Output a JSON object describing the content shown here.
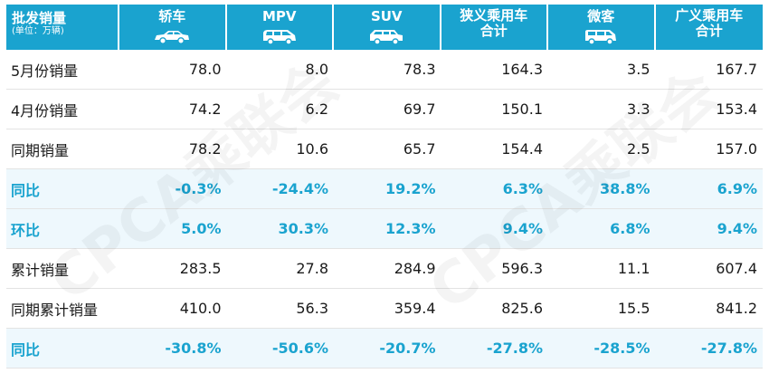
{
  "header": {
    "title": "批发销量",
    "unit": "(单位：万辆)",
    "columns": [
      {
        "label": "轿车",
        "icon": "sedan-icon"
      },
      {
        "label": "MPV",
        "icon": "mpv-icon"
      },
      {
        "label": "SUV",
        "icon": "suv-icon"
      },
      {
        "label": "狭义乘用车",
        "label2": "合计"
      },
      {
        "label": "微客",
        "icon": "minivan-icon"
      },
      {
        "label": "广义乘用车",
        "label2": "合计"
      }
    ]
  },
  "rows": [
    {
      "label": "5月份销量",
      "values": [
        "78.0",
        "8.0",
        "78.3",
        "164.3",
        "3.5",
        "167.7"
      ],
      "highlight": false
    },
    {
      "label": "4月份销量",
      "values": [
        "74.2",
        "6.2",
        "69.7",
        "150.1",
        "3.3",
        "153.4"
      ],
      "highlight": false
    },
    {
      "label": "同期销量",
      "values": [
        "78.2",
        "10.6",
        "65.7",
        "154.4",
        "2.5",
        "157.0"
      ],
      "highlight": false
    },
    {
      "label": "同比",
      "values": [
        "-0.3%",
        "-24.4%",
        "19.2%",
        "6.3%",
        "38.8%",
        "6.9%"
      ],
      "highlight": true
    },
    {
      "label": "环比",
      "values": [
        "5.0%",
        "30.3%",
        "12.3%",
        "9.4%",
        "6.8%",
        "9.4%"
      ],
      "highlight": true
    },
    {
      "label": "累计销量",
      "values": [
        "283.5",
        "27.8",
        "284.9",
        "596.3",
        "11.1",
        "607.4"
      ],
      "highlight": false
    },
    {
      "label": "同期累计销量",
      "values": [
        "410.0",
        "56.3",
        "359.4",
        "825.6",
        "15.5",
        "841.2"
      ],
      "highlight": false
    },
    {
      "label": "同比",
      "values": [
        "-30.8%",
        "-50.6%",
        "-20.7%",
        "-27.8%",
        "-28.5%",
        "-27.8%"
      ],
      "highlight": true
    }
  ],
  "watermark": "CPCA乘联会",
  "colors": {
    "accent": "#1aa3cf",
    "highlight_bg": "#eef8fd"
  }
}
